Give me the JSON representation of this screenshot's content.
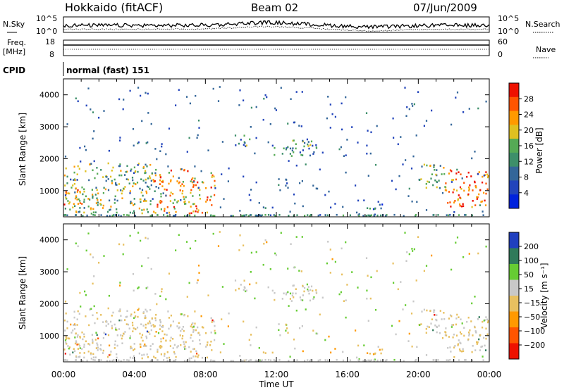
{
  "header": {
    "station": "Hokkaido (fitACF)",
    "beam": "Beam 02",
    "date": "07/Jun/2009"
  },
  "noise_panel": {
    "left_label": "N.Sky",
    "right_label": "N.Search",
    "ticks_left": [
      "10^5",
      "10^0"
    ],
    "ticks_right": [
      "10^5",
      "10^0"
    ]
  },
  "freq_panel": {
    "left_label_1": "Freq.",
    "left_label_2": "[MHz]",
    "right_label": "Nave",
    "ticks_left": [
      "18",
      "8"
    ],
    "ticks_right": [
      "60",
      "0"
    ]
  },
  "cpid": {
    "label": "CPID",
    "value": "normal (fast) 151"
  },
  "axes": {
    "ylabel": "Slant Range [km]",
    "xlabel": "Time UT",
    "y_ticks": [
      "4000",
      "3000",
      "2000",
      "1000"
    ],
    "x_ticks": [
      "00:00",
      "04:00",
      "08:00",
      "12:00",
      "16:00",
      "20:00",
      "00:00"
    ]
  },
  "power_scale": {
    "label": "Power [dB]",
    "ticks": [
      "28",
      "24",
      "20",
      "16",
      "12",
      "8",
      "4"
    ],
    "colors": [
      "#0022dd",
      "#2244bb",
      "#336699",
      "#3d8f6a",
      "#55aa55",
      "#e0c020",
      "#ff9900",
      "#ff5500",
      "#ee1100"
    ]
  },
  "velocity_scale": {
    "label": "Velocity [m s⁻¹]",
    "ticks": [
      "200",
      "100",
      "50",
      "15",
      "−15",
      "−50",
      "−100",
      "−200"
    ],
    "colors": [
      "#1f3fbf",
      "#2f7a5a",
      "#66cc33",
      "#c8c8c8",
      "#e8c060",
      "#ff9900",
      "#ff5500",
      "#ee1100"
    ]
  },
  "chart_data": {
    "type": "heatmap",
    "title": "Hokkaido (fitACF) Beam 02 07/Jun/2009",
    "xlabel": "Time UT",
    "ylabel": "Slant Range [km]",
    "x_range_hours": [
      0,
      24
    ],
    "y_range_km": [
      180,
      4500
    ],
    "x_ticks": [
      "00:00",
      "04:00",
      "08:00",
      "12:00",
      "16:00",
      "20:00",
      "00:00"
    ],
    "y_ticks": [
      1000,
      2000,
      3000,
      4000
    ],
    "power_colorbar": {
      "label": "Power [dB]",
      "ticks": [
        4,
        8,
        12,
        16,
        20,
        24,
        28
      ]
    },
    "velocity_colorbar": {
      "label": "Velocity [m s-1]",
      "ticks": [
        200,
        100,
        50,
        15,
        -15,
        -50,
        -100,
        -200
      ]
    },
    "echo_regions": [
      {
        "t_start": 0.0,
        "t_end": 5.0,
        "range_start": 300,
        "range_end": 1900,
        "power_db": 14,
        "velocity": -10
      },
      {
        "t_start": 0.0,
        "t_end": 1.0,
        "range_start": 500,
        "range_end": 1200,
        "power_db": 22,
        "velocity": -20
      },
      {
        "t_start": 5.0,
        "t_end": 8.5,
        "range_start": 300,
        "range_end": 1700,
        "power_db": 20,
        "velocity": -15
      },
      {
        "t_start": 9.2,
        "t_end": 10.5,
        "range_start": 2400,
        "range_end": 2800,
        "power_db": 10,
        "velocity": 0
      },
      {
        "t_start": 11.5,
        "t_end": 14.3,
        "range_start": 2100,
        "range_end": 2600,
        "power_db": 10,
        "velocity": 0
      },
      {
        "t_start": 16.5,
        "t_end": 18.0,
        "range_start": 400,
        "range_end": 600,
        "power_db": 8,
        "velocity": -40
      },
      {
        "t_start": 20.0,
        "t_end": 21.5,
        "range_start": 1000,
        "range_end": 1850,
        "power_db": 14,
        "velocity": -10
      },
      {
        "t_start": 21.5,
        "t_end": 24.0,
        "range_start": 500,
        "range_end": 1700,
        "power_db": 24,
        "velocity": -15
      }
    ],
    "noise_sky_level": "10^2 to 10^4",
    "cpid_value": 151
  }
}
